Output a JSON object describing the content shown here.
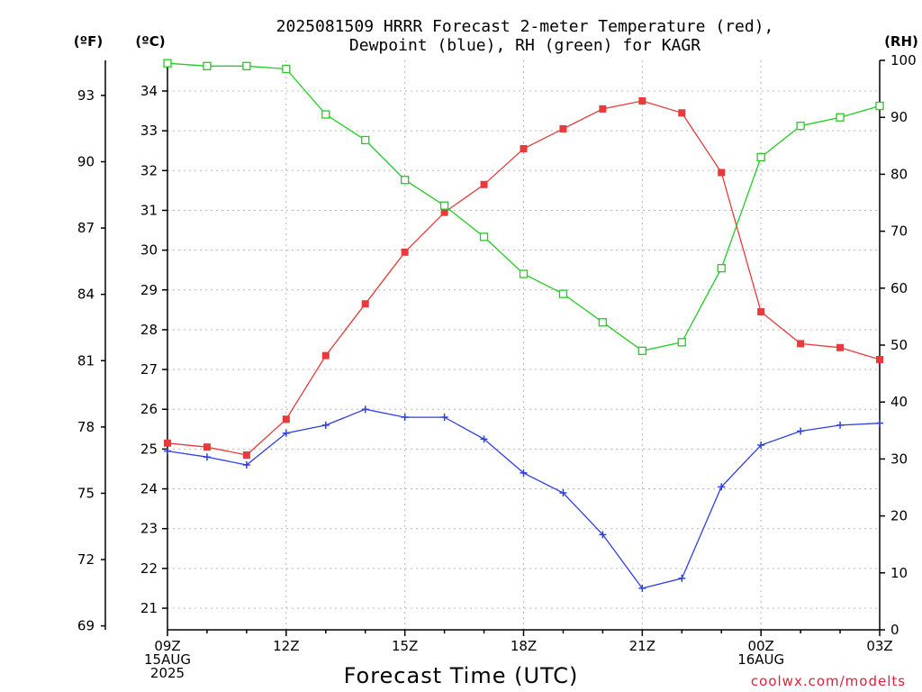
{
  "chart_data": {
    "type": "line",
    "title_line1": "2025081509 HRRR Forecast 2-meter Temperature (red),",
    "title_line2": "Dewpoint (blue), RH (green) for KAGR",
    "xlabel": "Forecast Time (UTC)",
    "credit": "coolwx.com/modelts",
    "unit_f": "(ºF)",
    "unit_c": "(ºC)",
    "unit_rh": "(RH)",
    "x": [
      "2025-08-15 09Z",
      "10Z",
      "11Z",
      "12Z",
      "13Z",
      "14Z",
      "15Z",
      "16Z",
      "17Z",
      "18Z",
      "19Z",
      "20Z",
      "21Z",
      "22Z",
      "23Z",
      "2025-08-16 00Z",
      "01Z",
      "02Z",
      "03Z"
    ],
    "x_tick_labels": [
      {
        "hour": 0,
        "lines": [
          "09Z",
          "15AUG",
          "2025"
        ]
      },
      {
        "hour": 3,
        "lines": [
          "12Z"
        ]
      },
      {
        "hour": 6,
        "lines": [
          "15Z"
        ]
      },
      {
        "hour": 9,
        "lines": [
          "18Z"
        ]
      },
      {
        "hour": 12,
        "lines": [
          "21Z"
        ]
      },
      {
        "hour": 15,
        "lines": [
          "00Z",
          "16AUG"
        ]
      },
      {
        "hour": 18,
        "lines": [
          "03Z"
        ]
      }
    ],
    "ylim_c": [
      20.5,
      35
    ],
    "yticks_c": [
      21,
      22,
      23,
      24,
      25,
      26,
      27,
      28,
      29,
      30,
      31,
      32,
      33,
      34
    ],
    "yticks_f": [
      69,
      72,
      75,
      78,
      81,
      84,
      87,
      90,
      93
    ],
    "ylim_rh": [
      0,
      100
    ],
    "yticks_rh": [
      0,
      10,
      20,
      30,
      40,
      50,
      60,
      70,
      80,
      90,
      100
    ],
    "grid": true,
    "series": [
      {
        "name": "Temperature",
        "axis": "C",
        "color": "#e83a3a",
        "marker": "filled-square",
        "values": [
          25.15,
          25.05,
          24.85,
          25.75,
          27.35,
          28.65,
          29.95,
          30.95,
          31.65,
          32.55,
          33.05,
          33.55,
          33.75,
          33.45,
          31.95,
          28.45,
          27.65,
          27.55,
          27.25
        ]
      },
      {
        "name": "Dewpoint",
        "axis": "C",
        "color": "#2f3ee6",
        "marker": "plus",
        "values": [
          24.95,
          24.8,
          24.6,
          25.4,
          25.6,
          26.0,
          25.8,
          25.8,
          25.25,
          24.4,
          23.9,
          22.85,
          21.5,
          21.75,
          24.05,
          25.1,
          25.45,
          25.6,
          25.65
        ]
      },
      {
        "name": "RH",
        "axis": "RH",
        "color": "#22cc22",
        "marker": "open-square",
        "values": [
          99.5,
          99.0,
          99.0,
          98.5,
          90.5,
          86.0,
          79.0,
          74.5,
          69.0,
          62.5,
          59.0,
          54.0,
          49.0,
          50.5,
          63.5,
          83.0,
          88.5,
          90.0,
          92.0
        ]
      }
    ]
  }
}
